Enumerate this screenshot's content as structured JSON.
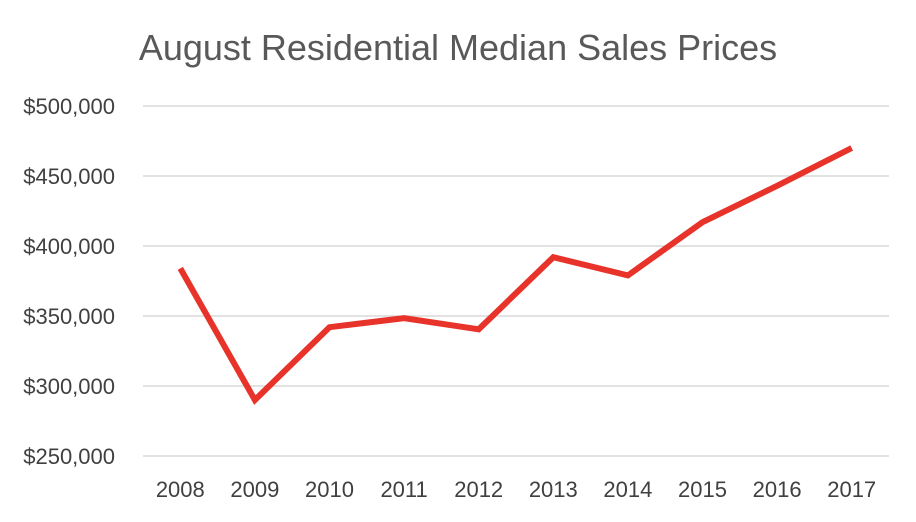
{
  "chart_data": {
    "type": "line",
    "title": "August Residential Median Sales Prices",
    "xlabel": "",
    "ylabel": "",
    "categories": [
      "2008",
      "2009",
      "2010",
      "2011",
      "2012",
      "2013",
      "2014",
      "2015",
      "2016",
      "2017"
    ],
    "series": [
      {
        "values": [
          384000,
          290000,
          342000,
          348500,
          340500,
          392000,
          379000,
          417000,
          443000,
          470000
        ]
      }
    ],
    "ylim": [
      250000,
      500000
    ],
    "yticks": [
      250000,
      300000,
      350000,
      400000,
      450000,
      500000
    ],
    "ytick_labels": [
      "$250,000",
      "$300,000",
      "$350,000",
      "$400,000",
      "$450,000",
      "$500,000"
    ],
    "grid": true,
    "legend": "none",
    "colors": {
      "line": "#e8332a",
      "grid": "#d9d9d9",
      "title": "#595959",
      "ticks": "#404040"
    }
  }
}
